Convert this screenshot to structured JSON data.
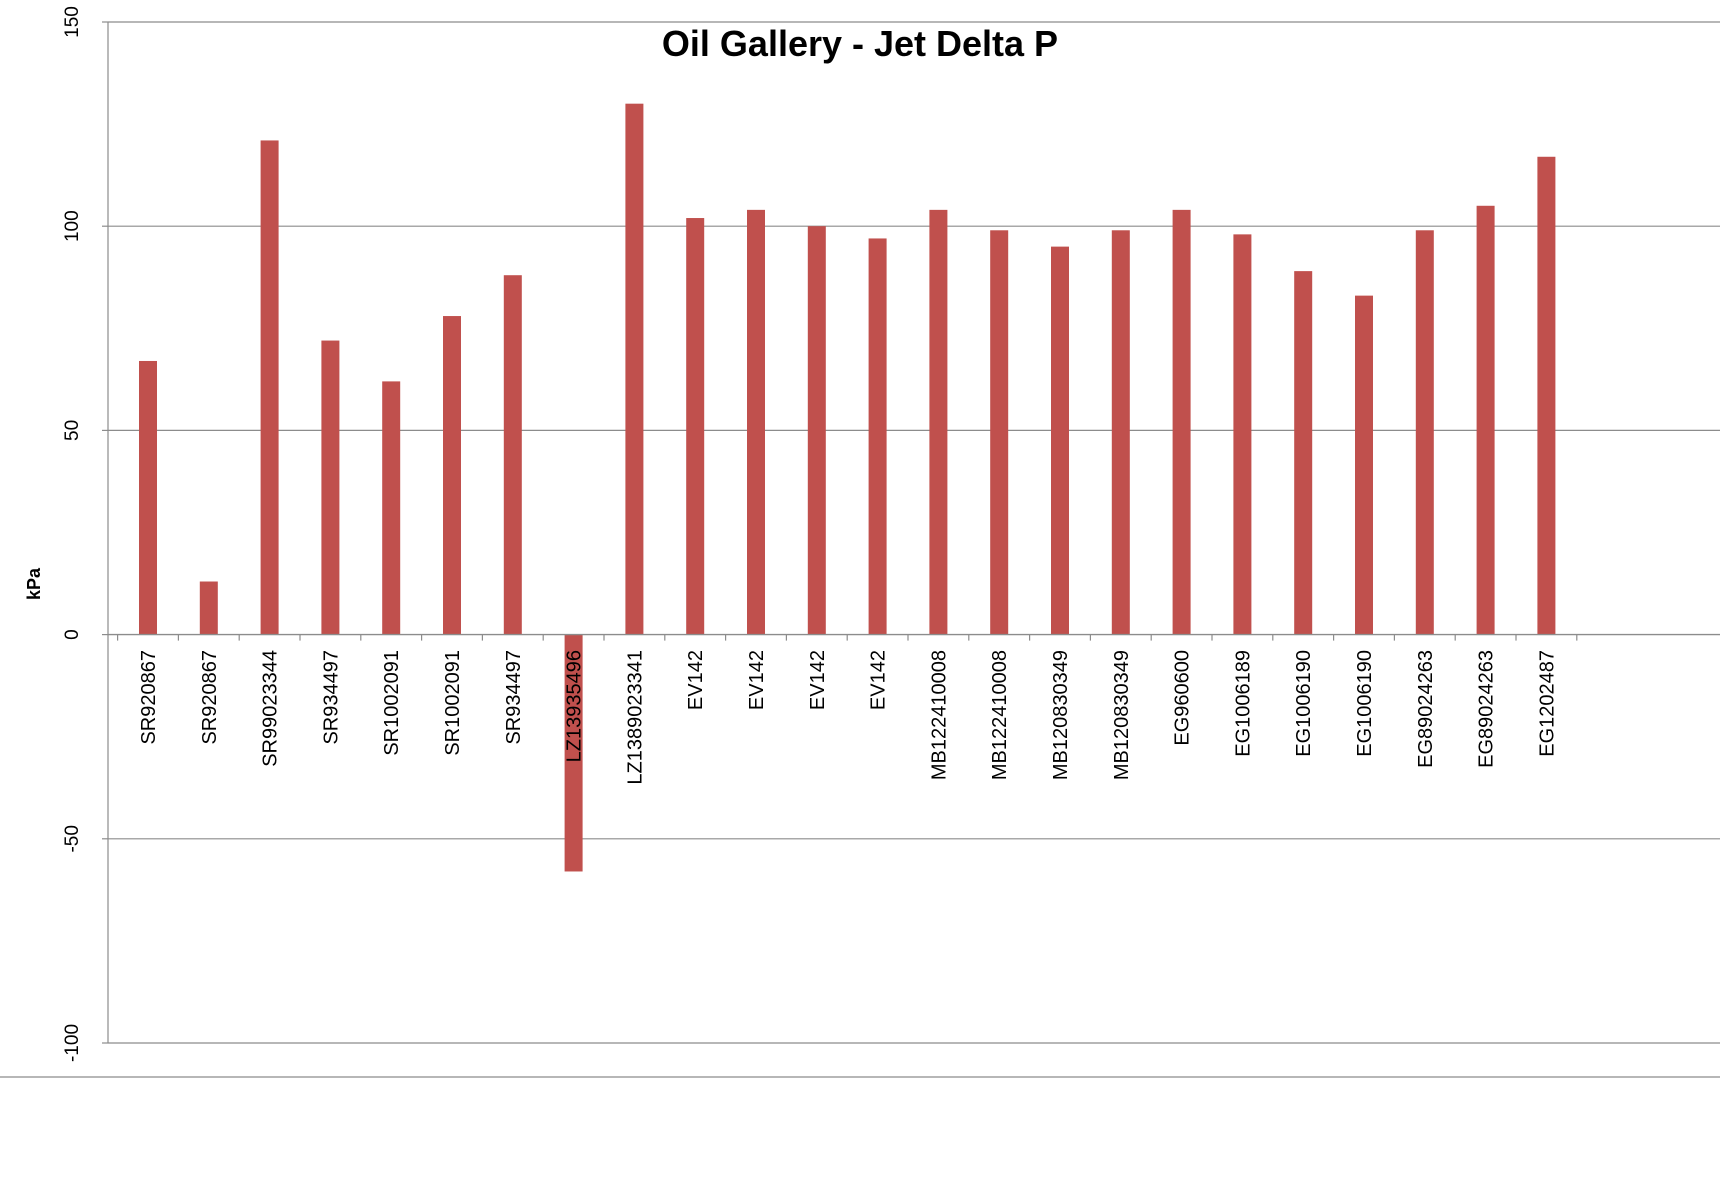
{
  "chart_data": {
    "type": "bar",
    "title": "Oil Gallery - Jet Delta P",
    "xlabel": "",
    "ylabel": "kPa",
    "ylim": [
      -100,
      150
    ],
    "yticks": [
      -100,
      -50,
      0,
      50,
      100,
      150
    ],
    "grid": true,
    "legend": "none",
    "colors": {
      "bar": "#c0504d",
      "grid": "#8c8c8c",
      "axis": "#8c8c8c"
    },
    "categories": [
      "SR920867",
      "SR920867",
      "SR99023344",
      "SR934497",
      "SR1002091",
      "SR1002091",
      "SR934497",
      "LZ13935496",
      "LZ1389023341",
      "EV142",
      "EV142",
      "EV142",
      "EV142",
      "MB122410008",
      "MB122410008",
      "MB120830349",
      "MB120830349",
      "EG960600",
      "EG1006189",
      "EG1006190",
      "EG1006190",
      "EG89024263",
      "EG89024263",
      "EG1202487"
    ],
    "values": [
      67,
      13,
      121,
      72,
      62,
      78,
      88,
      -58,
      130,
      102,
      104,
      100,
      97,
      104,
      99,
      95,
      99,
      104,
      98,
      89,
      83,
      99,
      105,
      117
    ]
  }
}
